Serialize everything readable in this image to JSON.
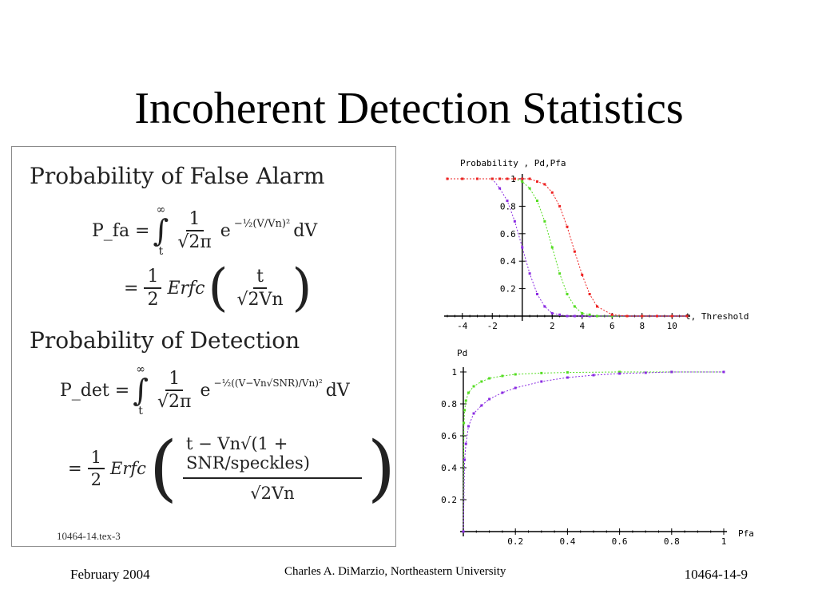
{
  "slide": {
    "title": "Incoherent Detection Statistics",
    "footer_left": "February 2004",
    "footer_center": "Charles A. DiMarzio, Northeastern University",
    "footer_right": "10464-14-9"
  },
  "panel": {
    "heading_fa": "Probability of False Alarm",
    "heading_det": "Probability of Detection",
    "reference": "10464-14.tex-3",
    "eq_fa_line1": {
      "lhs": "P_fa =",
      "integral": "∫",
      "upper": "∞",
      "lower": "t",
      "frac_num": "1",
      "frac_den": "√2π",
      "exp_base": "e",
      "exp": "−½(V/Vn)²",
      "tail": "dV"
    },
    "eq_fa_line2": {
      "lead": "=",
      "frac_num": "1",
      "frac_den": "2",
      "fn": "Erfc",
      "arg_num": "t",
      "arg_den": "√2Vn"
    },
    "eq_det_line1": {
      "lhs": "P_det =",
      "integral": "∫",
      "upper": "∞",
      "lower": "t",
      "frac_num": "1",
      "frac_den": "√2π",
      "exp_base": "e",
      "exp": "−½((V−Vn√SNR)/Vn)²",
      "tail": "dV"
    },
    "eq_det_line2": {
      "lead": "=",
      "frac_num": "1",
      "frac_den": "2",
      "fn": "Erfc",
      "arg_num": "t − Vn√(1 + SNR/speckles)",
      "arg_den": "√2Vn"
    }
  },
  "colors": {
    "fa": "#8a2be2",
    "mid": "#55dd22",
    "det": "#ee2222"
  },
  "chart_data": [
    {
      "type": "line",
      "title": "",
      "ylabel": "Probability , Pd,Pfa",
      "xlabel": "t, Threshold",
      "xlim": [
        -5,
        11
      ],
      "ylim": [
        0,
        1
      ],
      "xticks": [
        -4,
        -2,
        2,
        4,
        6,
        8,
        10
      ],
      "yticks": [
        0.2,
        0.4,
        0.6,
        0.8,
        1
      ],
      "xtick_labels": [
        "-4",
        "-2",
        "2",
        "4",
        "6",
        "8",
        "10"
      ],
      "ytick_labels": [
        "0.2",
        "0.4",
        "0.6",
        "0.8",
        "1"
      ],
      "x": [
        -5,
        -4,
        -3,
        -2,
        -1.5,
        -1,
        -0.5,
        0,
        0.5,
        1,
        1.5,
        2,
        2.5,
        3,
        3.5,
        4,
        4.5,
        5,
        6,
        7,
        8,
        9,
        10,
        11
      ],
      "series": [
        {
          "color_key": "fa",
          "values": [
            1,
            1,
            1,
            1,
            0.93,
            0.84,
            0.69,
            0.5,
            0.31,
            0.16,
            0.07,
            0.02,
            0.01,
            0,
            0,
            0,
            0,
            0,
            0,
            0,
            0,
            0,
            0,
            0
          ]
        },
        {
          "color_key": "mid",
          "values": [
            1,
            1,
            1,
            1,
            1,
            1,
            1,
            0.98,
            0.93,
            0.84,
            0.69,
            0.5,
            0.31,
            0.16,
            0.07,
            0.02,
            0.01,
            0,
            0,
            0,
            0,
            0,
            0,
            0
          ]
        },
        {
          "color_key": "det",
          "values": [
            1,
            1,
            1,
            1,
            1,
            1,
            1,
            1,
            1,
            0.98,
            0.96,
            0.9,
            0.8,
            0.65,
            0.47,
            0.3,
            0.16,
            0.07,
            0.01,
            0,
            0,
            0,
            0,
            0
          ]
        }
      ]
    },
    {
      "type": "line",
      "title": "",
      "ylabel": "Pd",
      "xlabel": "Pfa",
      "xlim": [
        0,
        1
      ],
      "ylim": [
        0,
        1
      ],
      "xticks": [
        0.2,
        0.4,
        0.6,
        0.8,
        1
      ],
      "yticks": [
        0.2,
        0.4,
        0.6,
        0.8,
        1
      ],
      "xtick_labels": [
        "0.2",
        "0.4",
        "0.6",
        "0.8",
        "1"
      ],
      "ytick_labels": [
        "0.2",
        "0.4",
        "0.6",
        "0.8",
        "1"
      ],
      "series": [
        {
          "color_key": "mid",
          "x": [
            0,
            0.002,
            0.005,
            0.01,
            0.02,
            0.04,
            0.07,
            0.1,
            0.15,
            0.2,
            0.3,
            0.4,
            0.6,
            0.8,
            1
          ],
          "values": [
            0,
            0.68,
            0.76,
            0.82,
            0.87,
            0.91,
            0.94,
            0.96,
            0.975,
            0.985,
            0.993,
            0.997,
            1,
            1,
            1
          ]
        },
        {
          "color_key": "fa",
          "x": [
            0,
            0.005,
            0.01,
            0.02,
            0.04,
            0.07,
            0.1,
            0.15,
            0.2,
            0.3,
            0.4,
            0.5,
            0.6,
            0.7,
            0.8,
            1
          ],
          "values": [
            0,
            0.45,
            0.55,
            0.66,
            0.74,
            0.79,
            0.83,
            0.87,
            0.9,
            0.94,
            0.965,
            0.98,
            0.99,
            0.995,
            1,
            1
          ]
        }
      ]
    }
  ]
}
